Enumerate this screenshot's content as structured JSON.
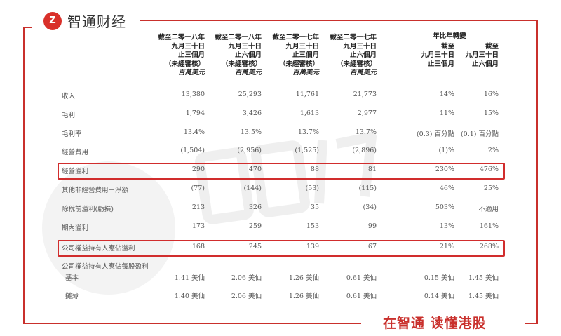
{
  "brand": {
    "logo_mark": "Z",
    "name": "智通财经",
    "slogan": "在智通 读懂港股",
    "accent": "#c9302c"
  },
  "watermark": "智通财经",
  "columns": [
    {
      "lines": [
        "截至二零一八年",
        "九月三十日",
        "止三個月",
        "（未經審核）"
      ],
      "unit": "百萬美元"
    },
    {
      "lines": [
        "截至二零一八年",
        "九月三十日",
        "止六個月",
        "（未經審核）"
      ],
      "unit": "百萬美元"
    },
    {
      "lines": [
        "截至二零一七年",
        "九月三十日",
        "止三個月",
        "（未經審核）"
      ],
      "unit": "百萬美元"
    },
    {
      "lines": [
        "截至二零一七年",
        "九月三十日",
        "止六個月",
        "（未經審核）"
      ],
      "unit": "百萬美元"
    }
  ],
  "yoy_header": "年比年轉變",
  "yoy_columns": [
    {
      "lines": [
        "截至",
        "九月三十日",
        "止三個月"
      ]
    },
    {
      "lines": [
        "截至",
        "九月三十日",
        "止六個月"
      ]
    }
  ],
  "rows": [
    {
      "label": "收入",
      "values": [
        "13,380",
        "25,293",
        "11,761",
        "21,773",
        "14%",
        "16%"
      ]
    },
    {
      "label": "毛利",
      "values": [
        "1,794",
        "3,426",
        "1,613",
        "2,977",
        "11%",
        "15%"
      ]
    },
    {
      "label": "毛利率",
      "values": [
        "13.4%",
        "13.5%",
        "13.7%",
        "13.7%",
        "(0.3) 百分點",
        "(0.1) 百分點"
      ]
    },
    {
      "label": "經營費用",
      "values": [
        "(1,504)",
        "(2,956)",
        "(1,525)",
        "(2,896)",
        "(1)%",
        "2%"
      ]
    },
    {
      "label": "經營溢利",
      "values": [
        "290",
        "470",
        "88",
        "81",
        "230%",
        "476%"
      ],
      "highlighted": true
    },
    {
      "label": "其他非經營費用－淨額",
      "values": [
        "(77)",
        "(144)",
        "(53)",
        "(115)",
        "46%",
        "25%"
      ]
    },
    {
      "label": "除稅前溢利(虧損)",
      "values": [
        "213",
        "326",
        "35",
        "(34)",
        "503%",
        "不適用"
      ]
    },
    {
      "label": "期內溢利",
      "values": [
        "173",
        "259",
        "153",
        "99",
        "13%",
        "161%"
      ]
    },
    {
      "label": "公司權益持有人應佔溢利",
      "values": [
        "168",
        "245",
        "139",
        "67",
        "21%",
        "268%"
      ],
      "highlighted": true
    }
  ],
  "eps": {
    "label": "公司權益持有人應佔每股盈利",
    "rows": [
      {
        "label": "基本",
        "values": [
          "1.41 美仙",
          "2.06 美仙",
          "1.26 美仙",
          "0.61 美仙",
          "0.15 美仙",
          "1.45 美仙"
        ]
      },
      {
        "label": "攤薄",
        "values": [
          "1.40 美仙",
          "2.06 美仙",
          "1.26 美仙",
          "0.61 美仙",
          "0.14 美仙",
          "1.45 美仙"
        ]
      }
    ]
  }
}
